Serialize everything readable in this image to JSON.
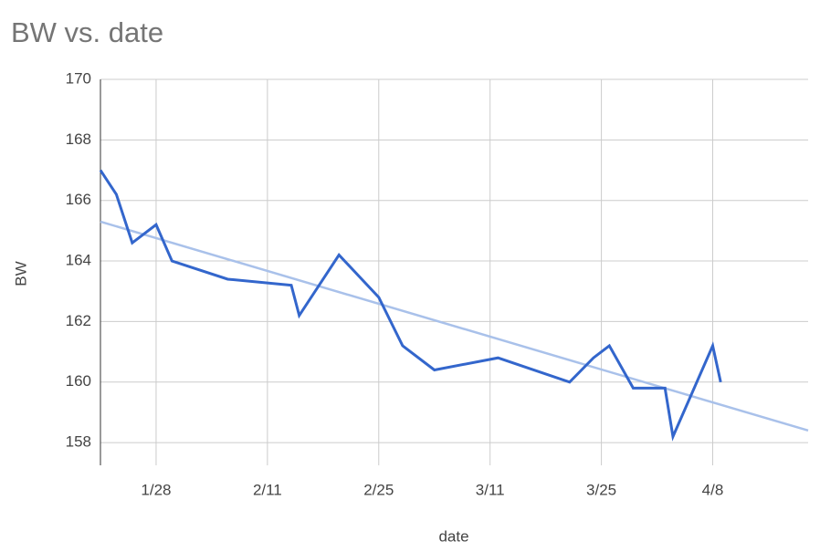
{
  "chart_data": {
    "type": "line",
    "title": "BW vs. date",
    "x_label": "date",
    "y_label": "BW",
    "x": [
      "1/21",
      "1/23",
      "1/25",
      "1/28",
      "1/30",
      "2/6",
      "2/14",
      "2/15",
      "2/20",
      "2/25",
      "2/28",
      "3/4",
      "3/12",
      "3/21",
      "3/24",
      "3/26",
      "3/29",
      "4/2",
      "4/3",
      "4/8",
      "4/9"
    ],
    "values": [
      167.0,
      166.2,
      164.6,
      165.2,
      164.0,
      163.4,
      163.2,
      162.2,
      164.2,
      162.8,
      161.2,
      160.4,
      160.8,
      160.0,
      160.8,
      161.2,
      159.8,
      159.8,
      158.2,
      161.2,
      160.0
    ],
    "color": "#3366cc",
    "trendline": {
      "color": "#a9c1ea",
      "start": 165.3,
      "end": 158.4
    },
    "xlim": [
      "1/21",
      "4/20"
    ],
    "xticks": [
      "1/28",
      "2/11",
      "2/25",
      "3/11",
      "3/25",
      "4/8"
    ],
    "ylim": [
      157.25,
      170
    ],
    "yticks": [
      158,
      160,
      162,
      164,
      166,
      168,
      170
    ],
    "grid": true
  }
}
